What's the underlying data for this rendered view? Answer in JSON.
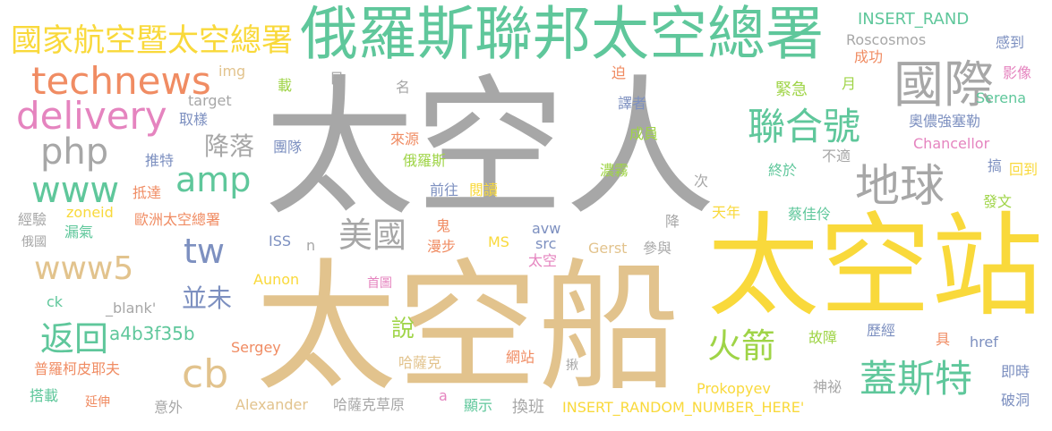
{
  "colors": {
    "gray": "#a7a7a7",
    "tan": "#e2c38d",
    "yellow": "#f9d93b",
    "green": "#5fc79b",
    "orange": "#f08c63",
    "pink": "#e584bf",
    "blue": "#7d90c0",
    "lime": "#9fd447",
    "background": "#ffffff"
  },
  "words": [
    {
      "text": "太空人",
      "color": "gray"
    },
    {
      "text": "太空船",
      "color": "tan"
    },
    {
      "text": "太空站",
      "color": "yellow"
    },
    {
      "text": "俄羅斯聯邦太空總署",
      "color": "green"
    },
    {
      "text": "國家航空暨太空總署",
      "color": "yellow"
    },
    {
      "text": "technews",
      "color": "orange"
    },
    {
      "text": "delivery",
      "color": "pink"
    },
    {
      "text": "php",
      "color": "gray"
    },
    {
      "text": "www",
      "color": "green"
    },
    {
      "text": "amp",
      "color": "green"
    },
    {
      "text": "tw",
      "color": "blue"
    },
    {
      "text": "www5",
      "color": "tan"
    },
    {
      "text": "返回",
      "color": "green"
    },
    {
      "text": "cb",
      "color": "tan"
    },
    {
      "text": "國際",
      "color": "gray"
    },
    {
      "text": "聯合號",
      "color": "green"
    },
    {
      "text": "地球",
      "color": "gray"
    },
    {
      "text": "美國",
      "color": "gray"
    },
    {
      "text": "火箭",
      "color": "lime"
    },
    {
      "text": "蓋斯特",
      "color": "green"
    },
    {
      "text": "降落",
      "color": "gray"
    },
    {
      "text": "並未",
      "color": "blue"
    },
    {
      "text": "a4b3f35b",
      "color": "green"
    },
    {
      "text": "說",
      "color": "lime"
    },
    {
      "text": "INSERT_RAND",
      "color": "green"
    },
    {
      "text": "Roscosmos",
      "color": "gray"
    },
    {
      "text": "感到",
      "color": "blue"
    },
    {
      "text": "影像",
      "color": "pink"
    },
    {
      "text": "Serena",
      "color": "green"
    },
    {
      "text": "成功",
      "color": "orange"
    },
    {
      "text": "img",
      "color": "tan"
    },
    {
      "text": "target",
      "color": "gray"
    },
    {
      "text": "取樣",
      "color": "blue"
    },
    {
      "text": "載",
      "color": "lime"
    },
    {
      "text": "日",
      "color": "gray"
    },
    {
      "text": "名",
      "color": "gray"
    },
    {
      "text": "迫",
      "color": "orange"
    },
    {
      "text": "月",
      "color": "lime"
    },
    {
      "text": "緊急",
      "color": "lime"
    },
    {
      "text": "譯者",
      "color": "blue"
    },
    {
      "text": "奧儂強塞勒",
      "color": "blue"
    },
    {
      "text": "Chancellor",
      "color": "pink"
    },
    {
      "text": "不適",
      "color": "gray"
    },
    {
      "text": "搞",
      "color": "blue"
    },
    {
      "text": "回到",
      "color": "yellow"
    },
    {
      "text": "團隊",
      "color": "blue"
    },
    {
      "text": "來源",
      "color": "orange"
    },
    {
      "text": "成員",
      "color": "lime"
    },
    {
      "text": "推特",
      "color": "blue"
    },
    {
      "text": "俄羅斯",
      "color": "lime"
    },
    {
      "text": "濃霧",
      "color": "lime"
    },
    {
      "text": "終於",
      "color": "green"
    },
    {
      "text": "次",
      "color": "gray"
    },
    {
      "text": "抵達",
      "color": "orange"
    },
    {
      "text": "前往",
      "color": "blue"
    },
    {
      "text": "閱讀",
      "color": "yellow"
    },
    {
      "text": "發文",
      "color": "lime"
    },
    {
      "text": "經驗",
      "color": "gray"
    },
    {
      "text": "zoneid",
      "color": "yellow"
    },
    {
      "text": "歐洲太空總署",
      "color": "orange"
    },
    {
      "text": "天年",
      "color": "yellow"
    },
    {
      "text": "蔡佳伶",
      "color": "green"
    },
    {
      "text": "俄國",
      "color": "gray"
    },
    {
      "text": "漏氣",
      "color": "green"
    },
    {
      "text": "鬼",
      "color": "orange"
    },
    {
      "text": "降",
      "color": "gray"
    },
    {
      "text": "ISS",
      "color": "blue"
    },
    {
      "text": "n",
      "color": "gray"
    },
    {
      "text": "漫步",
      "color": "orange"
    },
    {
      "text": "avw",
      "color": "blue"
    },
    {
      "text": "src",
      "color": "blue"
    },
    {
      "text": "MS",
      "color": "yellow"
    },
    {
      "text": "太空",
      "color": "pink"
    },
    {
      "text": "Gerst",
      "color": "tan"
    },
    {
      "text": "參與",
      "color": "gray"
    },
    {
      "text": "Aunon",
      "color": "yellow"
    },
    {
      "text": "首圖",
      "color": "pink"
    },
    {
      "text": "ck",
      "color": "green"
    },
    {
      "text": "_blank'",
      "color": "gray"
    },
    {
      "text": "故障",
      "color": "lime"
    },
    {
      "text": "歷經",
      "color": "blue"
    },
    {
      "text": "具",
      "color": "orange"
    },
    {
      "text": "href",
      "color": "blue"
    },
    {
      "text": "哈薩克",
      "color": "tan"
    },
    {
      "text": "網站",
      "color": "orange"
    },
    {
      "text": "Sergey",
      "color": "orange"
    },
    {
      "text": "普羅柯皮耶夫",
      "color": "orange"
    },
    {
      "text": "搭載",
      "color": "green"
    },
    {
      "text": "延伸",
      "color": "orange"
    },
    {
      "text": "意外",
      "color": "gray"
    },
    {
      "text": "Alexander",
      "color": "tan"
    },
    {
      "text": "哈薩克草原",
      "color": "gray"
    },
    {
      "text": "a",
      "color": "pink"
    },
    {
      "text": "顯示",
      "color": "green"
    },
    {
      "text": "換班",
      "color": "gray"
    },
    {
      "text": "INSERT_RANDOM_NUMBER_HERE'",
      "color": "yellow"
    },
    {
      "text": "Prokopyev",
      "color": "yellow"
    },
    {
      "text": "神祕",
      "color": "gray"
    },
    {
      "text": "即時",
      "color": "blue"
    },
    {
      "text": "破洞",
      "color": "blue"
    },
    {
      "text": "揪",
      "color": "gray"
    }
  ]
}
